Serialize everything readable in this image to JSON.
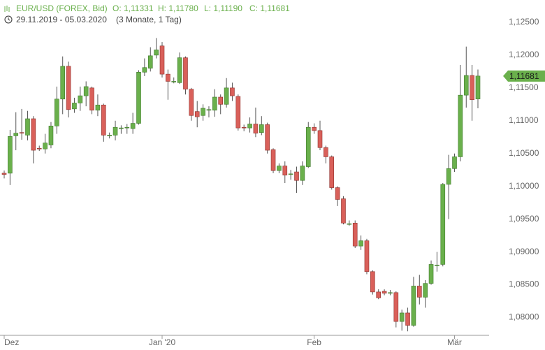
{
  "chart_data": {
    "type": "candlestick",
    "title": "EUR/USD (FOREX, Bid)",
    "ohlc_labels": [
      "O: 1,11331",
      "H: 1,11780",
      "L: 1,11190",
      "C: 1,11681"
    ],
    "subtitle": "29.11.2019 - 05.03.2020",
    "period": "(3 Monate, 1 Tag)",
    "up_color": "#6ab04c",
    "down_color": "#d9605a",
    "categories": [
      "Dez",
      null,
      null,
      null,
      null,
      null,
      null,
      null,
      null,
      null,
      null,
      null,
      null,
      null,
      null,
      null,
      null,
      null,
      null,
      null,
      null,
      null,
      null,
      null,
      null,
      null,
      null,
      "Jan '20",
      null,
      null,
      null,
      null,
      null,
      null,
      null,
      null,
      null,
      null,
      null,
      null,
      null,
      null,
      null,
      null,
      null,
      null,
      null,
      null,
      null,
      null,
      null,
      null,
      null,
      "Feb",
      null,
      null,
      null,
      null,
      null,
      null,
      null,
      null,
      null,
      null,
      null,
      null,
      null,
      null,
      null,
      null,
      null,
      null,
      null,
      null,
      null,
      null,
      null,
      "Mär",
      null,
      null,
      null,
      null
    ],
    "open": [
      1.102,
      1.102,
      1.1077,
      1.1082,
      1.1078,
      1.1103,
      1.1058,
      1.1057,
      1.1063,
      1.1092,
      1.1133,
      1.1183,
      1.1118,
      1.1127,
      1.1138,
      1.115,
      1.1116,
      1.1124,
      1.1078,
      1.1078,
      1.1089,
      1.109,
      1.1088,
      1.1096,
      1.1174,
      1.118,
      1.12,
      1.1214,
      1.1171,
      1.116,
      1.1158,
      1.1196,
      1.1148,
      1.1114,
      1.1108,
      1.1117,
      1.1116,
      1.1136,
      1.1125,
      1.115,
      1.1137,
      1.109,
      1.1089,
      1.1095,
      1.1082,
      1.1094,
      1.1056,
      1.1024,
      1.1031,
      1.1019,
      1.1022,
      1.1009,
      1.103,
      1.109,
      1.1085,
      1.1059,
      1.1045,
      1.0998,
      1.0981,
      1.0943,
      1.0944,
      1.0909,
      1.0917,
      1.087,
      1.0839,
      1.084,
      1.0838,
      1.0838,
      1.0794,
      1.0807,
      1.0788,
      1.0848,
      1.0831,
      1.0852,
      1.088,
      1.0881,
      1.1003,
      1.1027,
      1.1045,
      1.1139,
      1.1169,
      1.11331
    ],
    "high": [
      1.1024,
      1.1086,
      1.1113,
      1.1118,
      1.1115,
      1.1107,
      1.1062,
      1.108,
      1.1098,
      1.1152,
      1.1198,
      1.119,
      1.1135,
      1.1152,
      1.116,
      1.1152,
      1.114,
      1.1126,
      1.1082,
      1.11,
      1.1093,
      1.1095,
      1.1112,
      1.1177,
      1.1195,
      1.1212,
      1.1226,
      1.122,
      1.1178,
      1.1166,
      1.1204,
      1.1198,
      1.115,
      1.113,
      1.1125,
      1.1122,
      1.1148,
      1.114,
      1.1165,
      1.1158,
      1.114,
      1.1094,
      1.1105,
      1.112,
      1.1107,
      1.1097,
      1.1058,
      1.1035,
      1.1038,
      1.1025,
      1.103,
      1.1038,
      1.1098,
      1.1096,
      1.11,
      1.1062,
      1.1047,
      1.1,
      1.0985,
      1.0948,
      1.0948,
      1.0925,
      1.092,
      1.0872,
      1.0843,
      1.0843,
      1.0842,
      1.084,
      1.0812,
      1.0815,
      1.0862,
      1.0865,
      1.0857,
      1.0887,
      1.09,
      1.1005,
      1.1048,
      1.105,
      1.1185,
      1.1213,
      1.1185,
      1.1178
    ],
    "low": [
      1.1012,
      1.1002,
      1.1055,
      1.1071,
      1.107,
      1.1035,
      1.1054,
      1.105,
      1.1058,
      1.108,
      1.111,
      1.1105,
      1.1112,
      1.1115,
      1.1122,
      1.111,
      1.1107,
      1.1068,
      1.1073,
      1.107,
      1.108,
      1.108,
      1.108,
      1.1094,
      1.1168,
      1.1175,
      1.1195,
      1.1166,
      1.1132,
      1.1157,
      1.1156,
      1.114,
      1.11,
      1.109,
      1.11,
      1.1105,
      1.1106,
      1.111,
      1.112,
      1.113,
      1.1085,
      1.1084,
      1.1082,
      1.1075,
      1.1078,
      1.105,
      1.102,
      1.102,
      1.1005,
      1.101,
      1.099,
      1.1002,
      1.1028,
      1.108,
      1.1055,
      1.1035,
      1.0995,
      1.097,
      1.0942,
      1.094,
      1.0906,
      1.0903,
      1.0866,
      1.0835,
      1.0828,
      1.0834,
      1.0834,
      1.0785,
      1.078,
      1.0779,
      1.0786,
      1.082,
      1.0815,
      1.085,
      1.087,
      1.0878,
      1.095,
      1.1022,
      1.1038,
      1.112,
      1.11,
      1.1119
    ],
    "close": [
      1.1018,
      1.1076,
      1.1081,
      1.1081,
      1.1103,
      1.1055,
      1.1057,
      1.1066,
      1.1092,
      1.1133,
      1.1183,
      1.1117,
      1.1127,
      1.1138,
      1.1152,
      1.1116,
      1.1124,
      1.1078,
      1.1078,
      1.109,
      1.1089,
      1.109,
      1.1096,
      1.1174,
      1.1181,
      1.1199,
      1.1208,
      1.1171,
      1.116,
      1.116,
      1.1196,
      1.1148,
      1.1108,
      1.1106,
      1.1119,
      1.1117,
      1.1136,
      1.1125,
      1.115,
      1.1138,
      1.1089,
      1.1089,
      1.1095,
      1.1081,
      1.1094,
      1.1055,
      1.1024,
      1.1031,
      1.1017,
      1.1019,
      1.1009,
      1.1031,
      1.109,
      1.1085,
      1.1059,
      1.1045,
      1.0998,
      1.098,
      1.0944,
      1.0943,
      1.0909,
      1.0917,
      1.087,
      1.0839,
      1.083,
      1.0837,
      1.0838,
      1.0794,
      1.0807,
      1.0788,
      1.0848,
      1.0831,
      1.0852,
      1.0881,
      1.088,
      1.1003,
      1.1027,
      1.1045,
      1.1139,
      1.1169,
      1.1132,
      1.11681
    ],
    "last_price": {
      "value": 1.11681,
      "label": "1,11681"
    },
    "ylim": [
      1.0775,
      1.1284
    ],
    "yticks": [
      {
        "value": 1.08,
        "label": "1,08000"
      },
      {
        "value": 1.085,
        "label": "1,08500"
      },
      {
        "value": 1.09,
        "label": "1,09000"
      },
      {
        "value": 1.095,
        "label": "1,09500"
      },
      {
        "value": 1.1,
        "label": "1,10000"
      },
      {
        "value": 1.105,
        "label": "1,10500"
      },
      {
        "value": 1.11,
        "label": "1,11000"
      },
      {
        "value": 1.115,
        "label": "1,11500"
      },
      {
        "value": 1.12,
        "label": "1,12000"
      },
      {
        "value": 1.125,
        "label": "1,12500"
      }
    ],
    "grid": false
  }
}
